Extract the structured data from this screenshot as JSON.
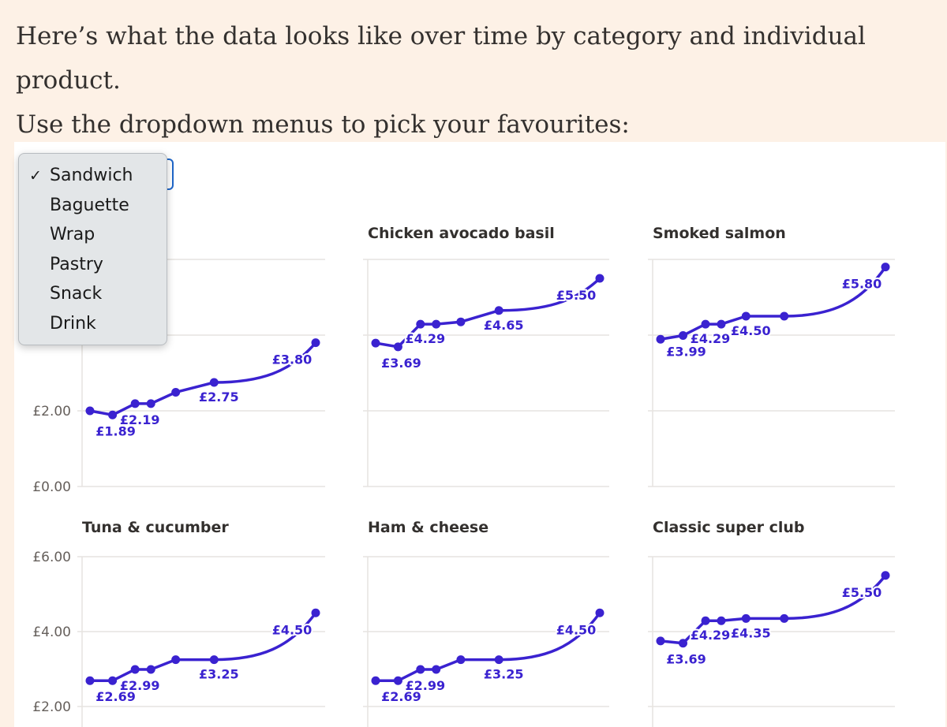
{
  "intro": {
    "line1": "Here’s what the data looks like over time by category and individual product.",
    "line2": "Use the dropdown menus to pick your favourites:"
  },
  "dropdown": {
    "selected": "Sandwich",
    "check_glyph": "✓",
    "options": [
      "Sandwich",
      "Baguette",
      "Wrap",
      "Pastry",
      "Snack",
      "Drink"
    ]
  },
  "colors": {
    "series": "#3a22d0",
    "background": "#fdf1e6",
    "panel": "#ffffff",
    "accent_border": "#1f66c9"
  },
  "chart_data": [
    {
      "type": "line",
      "title": "",
      "ylim": [
        0,
        6
      ],
      "yticks": [
        "£0.00",
        "£2.00"
      ],
      "values": [
        2.0,
        1.89,
        2.19,
        2.19,
        2.49,
        2.75,
        3.8
      ],
      "labels": [
        "",
        "£1.89",
        "£2.19",
        "",
        "",
        "£2.75",
        "£3.80"
      ]
    },
    {
      "type": "line",
      "title": "Chicken avocado basil",
      "ylim": [
        0,
        6
      ],
      "yticks": [],
      "values": [
        3.79,
        3.69,
        4.29,
        4.29,
        4.35,
        4.65,
        5.5
      ],
      "labels": [
        "",
        "£3.69",
        "£4.29",
        "",
        "",
        "£4.65",
        "£5.50"
      ]
    },
    {
      "type": "line",
      "title": "Smoked salmon",
      "ylim": [
        0,
        6
      ],
      "yticks": [],
      "values": [
        3.89,
        3.99,
        4.29,
        4.29,
        4.5,
        4.5,
        5.8
      ],
      "labels": [
        "",
        "£3.99",
        "£4.29",
        "",
        "£4.50",
        "",
        "£5.80"
      ]
    },
    {
      "type": "line",
      "title": "Tuna & cucumber",
      "ylim": [
        0,
        6
      ],
      "yticks": [
        "£2.00",
        "£4.00",
        "£6.00"
      ],
      "values": [
        2.69,
        2.69,
        2.99,
        2.99,
        3.25,
        3.25,
        4.5
      ],
      "labels": [
        "",
        "£2.69",
        "£2.99",
        "",
        "",
        "£3.25",
        "£4.50"
      ]
    },
    {
      "type": "line",
      "title": "Ham & cheese",
      "ylim": [
        0,
        6
      ],
      "yticks": [],
      "values": [
        2.69,
        2.69,
        2.99,
        2.99,
        3.25,
        3.25,
        4.5
      ],
      "labels": [
        "",
        "£2.69",
        "£2.99",
        "",
        "",
        "£3.25",
        "£4.50"
      ]
    },
    {
      "type": "line",
      "title": "Classic super club",
      "ylim": [
        0,
        6
      ],
      "yticks": [],
      "values": [
        3.75,
        3.69,
        4.29,
        4.29,
        4.35,
        4.35,
        5.5
      ],
      "labels": [
        "",
        "£3.69",
        "£4.29",
        "",
        "£4.35",
        "",
        "£5.50"
      ]
    }
  ]
}
